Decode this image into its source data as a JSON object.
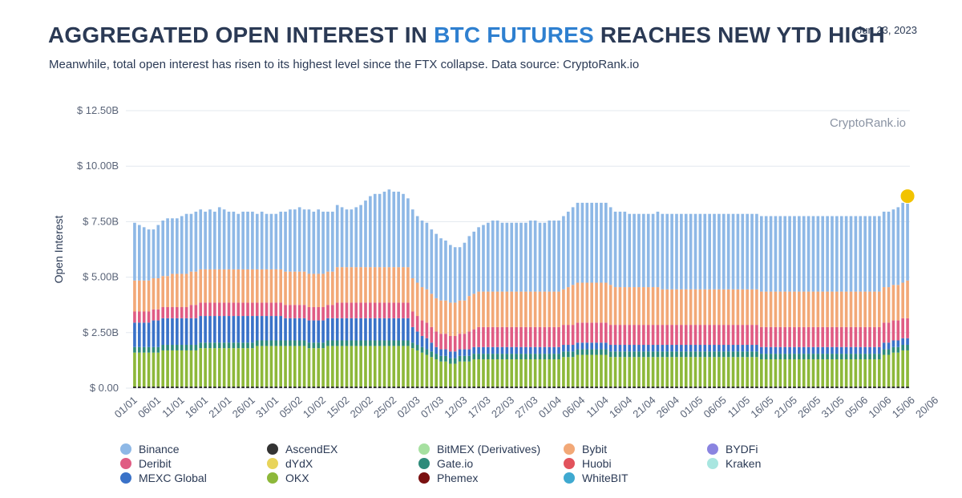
{
  "header": {
    "title_prefix": "AGGREGATED OPEN INTEREST IN ",
    "title_highlight": "BTC FUTURES",
    "title_suffix": " REACHES NEW YTD HIGH",
    "date": "Jun 23, 2023",
    "subtitle": "Meanwhile, total open interest has risen to its highest level since the FTX collapse. Data source: CryptoRank.io",
    "highlight_color": "#2f80d0"
  },
  "chart_data": {
    "type": "bar",
    "stacked": true,
    "ylabel": "Open Interest",
    "watermark": "CryptoRank.io",
    "ylim": [
      0,
      12.5
    ],
    "yticks": [
      "$ 0.00",
      "$ 2.50B",
      "$ 5.00B",
      "$ 7.50B",
      "$ 10.00B",
      "$ 12.50B"
    ],
    "ytick_values": [
      0,
      2.5,
      5,
      7.5,
      10,
      12.5
    ],
    "xticks": [
      "01/01",
      "06/01",
      "11/01",
      "16/01",
      "21/01",
      "26/01",
      "31/01",
      "05/02",
      "10/02",
      "15/02",
      "20/02",
      "25/02",
      "02/03",
      "07/03",
      "12/03",
      "17/03",
      "22/03",
      "27/03",
      "01/04",
      "06/04",
      "11/04",
      "16/04",
      "21/04",
      "26/04",
      "01/05",
      "06/05",
      "11/05",
      "16/05",
      "21/05",
      "26/05",
      "31/05",
      "05/06",
      "10/06",
      "15/06",
      "20/06"
    ],
    "grid": true,
    "highlight_last": true,
    "highlight_color": "#f2c300",
    "series": [
      {
        "name": "OKX",
        "color": "#8db83a",
        "values": [
          1.6,
          1.6,
          1.6,
          1.6,
          1.6,
          1.6,
          1.7,
          1.7,
          1.7,
          1.7,
          1.7,
          1.7,
          1.7,
          1.7,
          1.8,
          1.8,
          1.8,
          1.8,
          1.8,
          1.8,
          1.8,
          1.8,
          1.8,
          1.8,
          1.8,
          1.8,
          1.9,
          1.9,
          1.9,
          1.9,
          1.9,
          1.9,
          1.9,
          1.9,
          1.9,
          1.9,
          1.9,
          1.8,
          1.8,
          1.8,
          1.8,
          1.9,
          1.9,
          1.9,
          1.9,
          1.9,
          1.9,
          1.9,
          1.9,
          1.9,
          1.9,
          1.9,
          1.9,
          1.9,
          1.9,
          1.9,
          1.9,
          1.9,
          1.9,
          1.8,
          1.7,
          1.6,
          1.5,
          1.4,
          1.3,
          1.2,
          1.2,
          1.1,
          1.1,
          1.2,
          1.2,
          1.2,
          1.3,
          1.3,
          1.3,
          1.3,
          1.3,
          1.3,
          1.3,
          1.3,
          1.3,
          1.3,
          1.3,
          1.3,
          1.3,
          1.3,
          1.3,
          1.3,
          1.3,
          1.3,
          1.3,
          1.4,
          1.4,
          1.4,
          1.5,
          1.5,
          1.5,
          1.5,
          1.5,
          1.5,
          1.5,
          1.4,
          1.4,
          1.4,
          1.4,
          1.4,
          1.4,
          1.4,
          1.4,
          1.4,
          1.4,
          1.4,
          1.4,
          1.4,
          1.4,
          1.4,
          1.4,
          1.4,
          1.4,
          1.4,
          1.4,
          1.4,
          1.4,
          1.4,
          1.4,
          1.4,
          1.4,
          1.4,
          1.4,
          1.4,
          1.4,
          1.4,
          1.4,
          1.3,
          1.3,
          1.3,
          1.3,
          1.3,
          1.3,
          1.3,
          1.3,
          1.3,
          1.3,
          1.3,
          1.3,
          1.3,
          1.3,
          1.3,
          1.3,
          1.3,
          1.3,
          1.3,
          1.3,
          1.3,
          1.3,
          1.3,
          1.3,
          1.3,
          1.3,
          1.5,
          1.5,
          1.6,
          1.6,
          1.7,
          1.7
        ]
      },
      {
        "name": "Gate.io",
        "color": "#2e8b7a",
        "values": [
          0.25,
          0.25,
          0.25,
          0.25,
          0.25,
          0.25,
          0.25,
          0.25,
          0.25,
          0.25,
          0.25,
          0.25,
          0.25,
          0.25,
          0.25,
          0.25,
          0.25,
          0.25,
          0.25,
          0.25,
          0.25,
          0.25,
          0.25,
          0.25,
          0.25,
          0.25,
          0.25,
          0.25,
          0.25,
          0.25,
          0.25,
          0.25,
          0.25,
          0.25,
          0.25,
          0.25,
          0.25,
          0.25,
          0.25,
          0.25,
          0.25,
          0.25,
          0.25,
          0.25,
          0.25,
          0.25,
          0.25,
          0.25,
          0.25,
          0.25,
          0.25,
          0.25,
          0.25,
          0.25,
          0.25,
          0.25,
          0.25,
          0.25,
          0.25,
          0.25,
          0.25,
          0.25,
          0.25,
          0.25,
          0.25,
          0.25,
          0.25,
          0.25,
          0.25,
          0.25,
          0.25,
          0.25,
          0.25,
          0.25,
          0.25,
          0.25,
          0.25,
          0.25,
          0.25,
          0.25,
          0.25,
          0.25,
          0.25,
          0.25,
          0.25,
          0.25,
          0.25,
          0.25,
          0.25,
          0.25,
          0.25,
          0.25,
          0.25,
          0.25,
          0.25,
          0.25,
          0.25,
          0.25,
          0.25,
          0.25,
          0.25,
          0.25,
          0.25,
          0.25,
          0.25,
          0.25,
          0.25,
          0.25,
          0.25,
          0.25,
          0.25,
          0.25,
          0.25,
          0.25,
          0.25,
          0.25,
          0.25,
          0.25,
          0.25,
          0.25,
          0.25,
          0.25,
          0.25,
          0.25,
          0.25,
          0.25,
          0.25,
          0.25,
          0.25,
          0.25,
          0.25,
          0.25,
          0.25,
          0.25,
          0.25,
          0.25,
          0.25,
          0.25,
          0.25,
          0.25,
          0.25,
          0.25,
          0.25,
          0.25,
          0.25,
          0.25,
          0.25,
          0.25,
          0.25,
          0.25,
          0.25,
          0.25,
          0.25,
          0.25,
          0.25,
          0.25,
          0.25,
          0.25,
          0.25,
          0.25,
          0.25,
          0.25,
          0.25,
          0.25,
          0.25,
          0.25,
          0.25,
          0.25
        ]
      },
      {
        "name": "MEXC Global",
        "color": "#3a72c8",
        "values": [
          1.1,
          1.1,
          1.1,
          1.1,
          1.2,
          1.2,
          1.2,
          1.2,
          1.2,
          1.2,
          1.2,
          1.2,
          1.2,
          1.2,
          1.2,
          1.2,
          1.2,
          1.2,
          1.2,
          1.2,
          1.2,
          1.2,
          1.2,
          1.2,
          1.2,
          1.2,
          1.1,
          1.1,
          1.1,
          1.1,
          1.1,
          1.1,
          1.0,
          1.0,
          1.0,
          1.0,
          1.0,
          1.0,
          1.0,
          1.0,
          1.0,
          1.0,
          1.0,
          1.0,
          1.0,
          1.0,
          1.0,
          1.0,
          1.0,
          1.0,
          1.0,
          1.0,
          1.0,
          1.0,
          1.0,
          1.0,
          1.0,
          1.0,
          1.0,
          0.7,
          0.6,
          0.5,
          0.5,
          0.4,
          0.3,
          0.3,
          0.3,
          0.3,
          0.3,
          0.3,
          0.3,
          0.3,
          0.3,
          0.3,
          0.3,
          0.3,
          0.3,
          0.3,
          0.3,
          0.3,
          0.3,
          0.3,
          0.3,
          0.3,
          0.3,
          0.3,
          0.3,
          0.3,
          0.3,
          0.3,
          0.3,
          0.3,
          0.3,
          0.3,
          0.3,
          0.3,
          0.3,
          0.3,
          0.3,
          0.3,
          0.3,
          0.3,
          0.3,
          0.3,
          0.3,
          0.3,
          0.3,
          0.3,
          0.3,
          0.3,
          0.3,
          0.3,
          0.3,
          0.3,
          0.3,
          0.3,
          0.3,
          0.3,
          0.3,
          0.3,
          0.3,
          0.3,
          0.3,
          0.3,
          0.3,
          0.3,
          0.3,
          0.3,
          0.3,
          0.3,
          0.3,
          0.3,
          0.3,
          0.3,
          0.3,
          0.3,
          0.3,
          0.3,
          0.3,
          0.3,
          0.3,
          0.3,
          0.3,
          0.3,
          0.3,
          0.3,
          0.3,
          0.3,
          0.3,
          0.3,
          0.3,
          0.3,
          0.3,
          0.3,
          0.3,
          0.3,
          0.3,
          0.3,
          0.3,
          0.3,
          0.3,
          0.3,
          0.3,
          0.3,
          0.3,
          0.3,
          0.3,
          0.3
        ]
      },
      {
        "name": "Deribit",
        "color": "#e05c83",
        "values": [
          0.5,
          0.5,
          0.5,
          0.5,
          0.5,
          0.5,
          0.5,
          0.5,
          0.5,
          0.5,
          0.5,
          0.5,
          0.6,
          0.6,
          0.6,
          0.6,
          0.6,
          0.6,
          0.6,
          0.6,
          0.6,
          0.6,
          0.6,
          0.6,
          0.6,
          0.6,
          0.6,
          0.6,
          0.6,
          0.6,
          0.6,
          0.6,
          0.6,
          0.6,
          0.6,
          0.6,
          0.6,
          0.6,
          0.6,
          0.6,
          0.6,
          0.6,
          0.6,
          0.7,
          0.7,
          0.7,
          0.7,
          0.7,
          0.7,
          0.7,
          0.7,
          0.7,
          0.7,
          0.7,
          0.7,
          0.7,
          0.7,
          0.7,
          0.7,
          0.7,
          0.7,
          0.7,
          0.7,
          0.7,
          0.7,
          0.7,
          0.7,
          0.7,
          0.7,
          0.7,
          0.7,
          0.8,
          0.8,
          0.9,
          0.9,
          0.9,
          0.9,
          0.9,
          0.9,
          0.9,
          0.9,
          0.9,
          0.9,
          0.9,
          0.9,
          0.9,
          0.9,
          0.9,
          0.9,
          0.9,
          0.9,
          0.9,
          0.9,
          0.9,
          0.9,
          0.9,
          0.9,
          0.9,
          0.9,
          0.9,
          0.9,
          0.9,
          0.9,
          0.9,
          0.9,
          0.9,
          0.9,
          0.9,
          0.9,
          0.9,
          0.9,
          0.9,
          0.9,
          0.9,
          0.9,
          0.9,
          0.9,
          0.9,
          0.9,
          0.9,
          0.9,
          0.9,
          0.9,
          0.9,
          0.9,
          0.9,
          0.9,
          0.9,
          0.9,
          0.9,
          0.9,
          0.9,
          0.9,
          0.9,
          0.9,
          0.9,
          0.9,
          0.9,
          0.9,
          0.9,
          0.9,
          0.9,
          0.9,
          0.9,
          0.9,
          0.9,
          0.9,
          0.9,
          0.9,
          0.9,
          0.9,
          0.9,
          0.9,
          0.9,
          0.9,
          0.9,
          0.9,
          0.9,
          0.9,
          0.9,
          0.9,
          0.9,
          0.9,
          0.9,
          0.9,
          0.9,
          0.9,
          0.9
        ]
      },
      {
        "name": "Bybit",
        "color": "#f2a877",
        "values": [
          1.4,
          1.4,
          1.4,
          1.4,
          1.4,
          1.4,
          1.4,
          1.4,
          1.5,
          1.5,
          1.5,
          1.5,
          1.5,
          1.5,
          1.5,
          1.5,
          1.5,
          1.5,
          1.5,
          1.5,
          1.5,
          1.5,
          1.5,
          1.5,
          1.5,
          1.5,
          1.5,
          1.5,
          1.5,
          1.5,
          1.5,
          1.5,
          1.5,
          1.5,
          1.5,
          1.5,
          1.5,
          1.5,
          1.5,
          1.5,
          1.5,
          1.5,
          1.5,
          1.6,
          1.6,
          1.6,
          1.6,
          1.6,
          1.6,
          1.6,
          1.6,
          1.6,
          1.6,
          1.6,
          1.6,
          1.6,
          1.6,
          1.6,
          1.6,
          1.5,
          1.5,
          1.5,
          1.5,
          1.5,
          1.5,
          1.5,
          1.5,
          1.5,
          1.5,
          1.5,
          1.5,
          1.6,
          1.6,
          1.6,
          1.6,
          1.6,
          1.6,
          1.6,
          1.6,
          1.6,
          1.6,
          1.6,
          1.6,
          1.6,
          1.6,
          1.6,
          1.6,
          1.6,
          1.6,
          1.6,
          1.6,
          1.6,
          1.7,
          1.8,
          1.8,
          1.8,
          1.8,
          1.8,
          1.8,
          1.8,
          1.8,
          1.8,
          1.7,
          1.7,
          1.7,
          1.7,
          1.7,
          1.7,
          1.7,
          1.7,
          1.7,
          1.7,
          1.6,
          1.6,
          1.6,
          1.6,
          1.6,
          1.6,
          1.6,
          1.6,
          1.6,
          1.6,
          1.6,
          1.6,
          1.6,
          1.6,
          1.6,
          1.6,
          1.6,
          1.6,
          1.6,
          1.6,
          1.6,
          1.6,
          1.6,
          1.6,
          1.6,
          1.6,
          1.6,
          1.6,
          1.6,
          1.6,
          1.6,
          1.6,
          1.6,
          1.6,
          1.6,
          1.6,
          1.6,
          1.6,
          1.6,
          1.6,
          1.6,
          1.6,
          1.6,
          1.6,
          1.6,
          1.6,
          1.6,
          1.6,
          1.6,
          1.6,
          1.6,
          1.6,
          1.7,
          1.8,
          2.1,
          2.2,
          2.3,
          2.4,
          2.5
        ]
      },
      {
        "name": "Binance",
        "color": "#8eb8e6",
        "values": [
          2.6,
          2.5,
          2.4,
          2.3,
          2.2,
          2.4,
          2.5,
          2.6,
          2.5,
          2.5,
          2.6,
          2.7,
          2.6,
          2.7,
          2.7,
          2.6,
          2.7,
          2.6,
          2.8,
          2.7,
          2.6,
          2.6,
          2.5,
          2.6,
          2.6,
          2.6,
          2.5,
          2.6,
          2.5,
          2.5,
          2.5,
          2.6,
          2.7,
          2.8,
          2.8,
          2.9,
          2.8,
          2.9,
          2.8,
          2.9,
          2.8,
          2.7,
          2.7,
          2.8,
          2.7,
          2.6,
          2.6,
          2.7,
          2.8,
          3.0,
          3.2,
          3.3,
          3.3,
          3.4,
          3.5,
          3.4,
          3.4,
          3.3,
          3.1,
          3.1,
          3.0,
          3.0,
          3.0,
          2.9,
          2.9,
          2.8,
          2.7,
          2.6,
          2.5,
          2.4,
          2.6,
          2.7,
          2.8,
          2.9,
          3.0,
          3.1,
          3.2,
          3.2,
          3.1,
          3.1,
          3.1,
          3.1,
          3.1,
          3.1,
          3.2,
          3.2,
          3.1,
          3.1,
          3.2,
          3.2,
          3.2,
          3.3,
          3.4,
          3.5,
          3.6,
          3.6,
          3.6,
          3.6,
          3.6,
          3.6,
          3.6,
          3.5,
          3.4,
          3.4,
          3.4,
          3.3,
          3.3,
          3.3,
          3.3,
          3.3,
          3.3,
          3.4,
          3.4,
          3.4,
          3.4,
          3.4,
          3.4,
          3.4,
          3.4,
          3.4,
          3.4,
          3.4,
          3.4,
          3.4,
          3.4,
          3.4,
          3.4,
          3.4,
          3.4,
          3.4,
          3.4,
          3.4,
          3.4,
          3.4,
          3.4,
          3.4,
          3.4,
          3.4,
          3.4,
          3.4,
          3.4,
          3.4,
          3.4,
          3.4,
          3.4,
          3.4,
          3.4,
          3.4,
          3.4,
          3.4,
          3.4,
          3.4,
          3.4,
          3.4,
          3.4,
          3.4,
          3.4,
          3.4,
          3.4,
          3.4,
          3.4,
          3.4,
          3.5,
          3.6,
          3.8,
          3.9,
          4.0,
          4.1
        ]
      },
      {
        "name": "Huobi",
        "color": "#e2535c",
        "values": []
      },
      {
        "name": "AscendEX",
        "color": "#333333",
        "values": []
      },
      {
        "name": "dYdX",
        "color": "#e8d45a",
        "values": []
      },
      {
        "name": "Phemex",
        "color": "#7a1010",
        "values": []
      },
      {
        "name": "BitMEX (Derivatives)",
        "color": "#a6e0a0",
        "values": []
      },
      {
        "name": "WhiteBIT",
        "color": "#3fa9d0",
        "values": []
      },
      {
        "name": "BYDFi",
        "color": "#8a84e0",
        "values": []
      },
      {
        "name": "Kraken",
        "color": "#a8e6e0",
        "values": []
      }
    ]
  },
  "legend": [
    {
      "label": "Binance",
      "color": "#8eb8e6"
    },
    {
      "label": "AscendEX",
      "color": "#333333"
    },
    {
      "label": "BitMEX (Derivatives)",
      "color": "#a6e0a0"
    },
    {
      "label": "Bybit",
      "color": "#f2a877"
    },
    {
      "label": "BYDFi",
      "color": "#8a84e0"
    },
    {
      "label": "Deribit",
      "color": "#e05c83"
    },
    {
      "label": "dYdX",
      "color": "#e8d45a"
    },
    {
      "label": "Gate.io",
      "color": "#2e8b7a"
    },
    {
      "label": "Huobi",
      "color": "#e2535c"
    },
    {
      "label": "Kraken",
      "color": "#a8e6e0"
    },
    {
      "label": "MEXC Global",
      "color": "#3a72c8"
    },
    {
      "label": "OKX",
      "color": "#8db83a"
    },
    {
      "label": "Phemex",
      "color": "#7a1010"
    },
    {
      "label": "WhiteBIT",
      "color": "#3fa9d0"
    }
  ]
}
